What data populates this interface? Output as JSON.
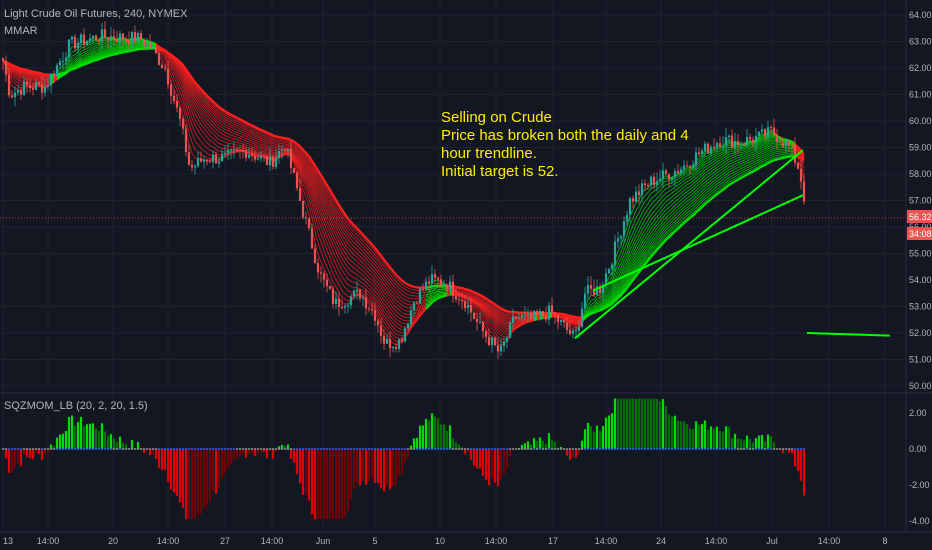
{
  "header": {
    "symbol": "Light Crude Oil Futures, 240, NYMEX",
    "indicator": "MMAR"
  },
  "annotation": {
    "lines": [
      "Selling on Crude",
      "Price has broken both the daily and 4",
      "hour trendline.",
      "Initial target is 52."
    ]
  },
  "price_scale": {
    "last_price": "56.32",
    "countdown": "34:08"
  },
  "oscillator": {
    "label": "SQZMOM_LB (20, 2, 20, 1.5)",
    "ticks": [
      "2.00",
      "0.00",
      "-2.00",
      "-4.00"
    ]
  },
  "colors": {
    "background": "#131722",
    "up": "#26a69a",
    "down": "#ef5350",
    "ribbon_down": "#ff1f1f",
    "ribbon_up": "#00e000",
    "momentum_up": "#00ff00",
    "momentum_down": "#ff0000",
    "annotation": "#ffee00"
  },
  "chart_data": [
    {
      "type": "candlestick",
      "ylim": [
        50.0,
        64.0
      ],
      "yticks": [
        "64.00",
        "63.00",
        "62.00",
        "61.00",
        "60.00",
        "59.00",
        "58.00",
        "57.00",
        "56.00",
        "55.00",
        "54.00",
        "53.00",
        "52.00",
        "51.00",
        "50.00"
      ],
      "xticks": [
        "13",
        "14:00",
        "20",
        "14:00",
        "27",
        "14:00",
        "Jun",
        "5",
        "10",
        "14:00",
        "17",
        "14:00",
        "24",
        "14:00",
        "Jul",
        "14:00",
        "8"
      ],
      "keypoints": [
        [
          0,
          62.8
        ],
        [
          10,
          61.0
        ],
        [
          25,
          61.3
        ],
        [
          45,
          61.3
        ],
        [
          70,
          62.9
        ],
        [
          100,
          63.2
        ],
        [
          140,
          63.1
        ],
        [
          150,
          62.8
        ],
        [
          165,
          62.0
        ],
        [
          180,
          60.0
        ],
        [
          190,
          58.2
        ],
        [
          205,
          58.6
        ],
        [
          225,
          58.6
        ],
        [
          245,
          58.9
        ],
        [
          270,
          58.4
        ],
        [
          285,
          59.1
        ],
        [
          300,
          57.0
        ],
        [
          320,
          54.2
        ],
        [
          335,
          53.1
        ],
        [
          360,
          53.5
        ],
        [
          375,
          52.7
        ],
        [
          385,
          51.6
        ],
        [
          400,
          51.7
        ],
        [
          415,
          53.3
        ],
        [
          430,
          54.0
        ],
        [
          445,
          53.9
        ],
        [
          465,
          53.2
        ],
        [
          480,
          52.2
        ],
        [
          500,
          51.2
        ],
        [
          515,
          52.6
        ],
        [
          530,
          52.5
        ],
        [
          550,
          52.8
        ],
        [
          575,
          51.8
        ],
        [
          585,
          53.5
        ],
        [
          600,
          53.7
        ],
        [
          610,
          54.6
        ],
        [
          630,
          57.0
        ],
        [
          650,
          57.7
        ],
        [
          680,
          58.2
        ],
        [
          700,
          58.8
        ],
        [
          720,
          59.3
        ],
        [
          740,
          59.2
        ],
        [
          760,
          59.4
        ],
        [
          772,
          59.6
        ],
        [
          790,
          59.0
        ],
        [
          800,
          58.1
        ],
        [
          806,
          56.4
        ]
      ],
      "ribbon": [
        {
          "name": "MMAR",
          "up_color": "#00e000",
          "down_color": "#ff1f1f",
          "periods": [
            4,
            6,
            8,
            10,
            12,
            14,
            16,
            18,
            20,
            22,
            24,
            26,
            28,
            30,
            32,
            34,
            36,
            38,
            40,
            42
          ]
        }
      ],
      "trendlines": [
        {
          "from": [
            575,
            51.8
          ],
          "to": [
            803,
            58.9
          ]
        },
        {
          "from": [
            593,
            53.6
          ],
          "to": [
            803,
            57.2
          ]
        },
        {
          "from": [
            807,
            52.0
          ],
          "to": [
            890,
            51.9
          ]
        }
      ]
    },
    {
      "type": "histogram",
      "ylim": [
        -4.0,
        3.0
      ],
      "yticks": [
        2.0,
        0.0,
        -2.0,
        -4.0
      ]
    }
  ]
}
